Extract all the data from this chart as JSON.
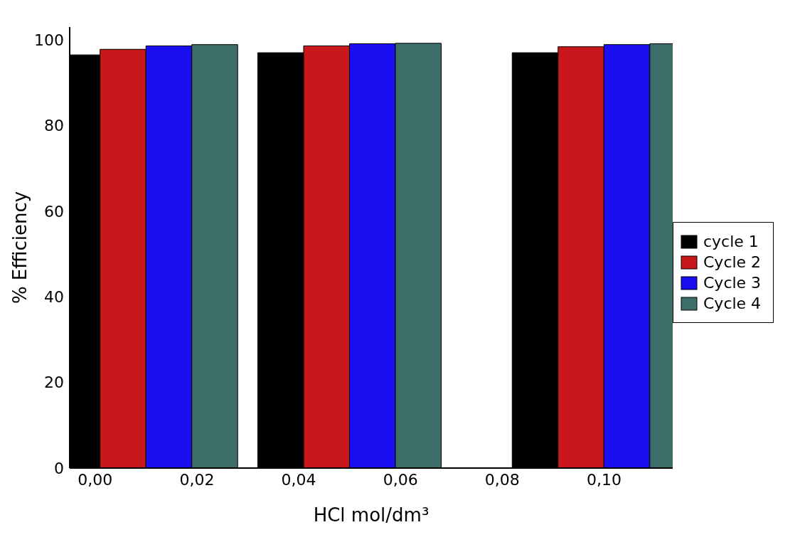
{
  "chart_data": {
    "type": "bar",
    "xlabel": "HCl mol/dm³",
    "ylabel": "% Efficiency",
    "x": [
      0.01,
      0.05,
      0.1
    ],
    "series": [
      {
        "name": "cycle 1",
        "color": "#000000",
        "values": [
          96.5,
          97,
          97
        ]
      },
      {
        "name": "Cycle 2",
        "color": "#c8181c",
        "values": [
          97.8,
          98.6,
          98.4
        ]
      },
      {
        "name": "Cycle 3",
        "color": "#1a0df0",
        "values": [
          98.6,
          99.1,
          98.9
        ]
      },
      {
        "name": "Cycle 4",
        "color": "#3e6e6a",
        "values": [
          98.9,
          99.2,
          99.1
        ]
      }
    ],
    "xlim": [
      -0.005,
      0.1135
    ],
    "xticks": [
      {
        "value": 0,
        "label": "0,00"
      },
      {
        "value": 0.02,
        "label": "0,02"
      },
      {
        "value": 0.04,
        "label": "0,04"
      },
      {
        "value": 0.06,
        "label": "0,06"
      },
      {
        "value": 0.08,
        "label": "0,08"
      },
      {
        "value": 0.1,
        "label": "0,10"
      }
    ],
    "ylim": [
      0,
      103
    ],
    "yticks": [
      0,
      20,
      40,
      60,
      80,
      100
    ],
    "grid": false,
    "legend": "right"
  }
}
